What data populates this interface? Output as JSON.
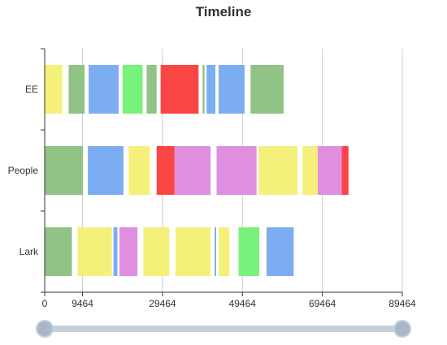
{
  "chart_data": {
    "type": "bar",
    "subtype": "horizontal-timeline",
    "title": "Timeline",
    "xlabel": "",
    "ylabel": "",
    "xlim": [
      0,
      89464
    ],
    "x_ticks": [
      0,
      9464,
      29464,
      49464,
      69464,
      89464
    ],
    "x_tick_labels": [
      "0",
      "9464",
      "29464",
      "49464",
      "69464",
      "89464"
    ],
    "categories": [
      "EE",
      "People",
      "Lark"
    ],
    "grid": "vertical",
    "legend": "none",
    "slider": {
      "start": 0,
      "end": 1
    },
    "rows": [
      {
        "category": "EE",
        "segments": [
          {
            "start": 0,
            "end": 4400,
            "color": "#f5f07a"
          },
          {
            "start": 6000,
            "end": 10000,
            "color": "#91c386"
          },
          {
            "start": 11000,
            "end": 18500,
            "color": "#7cadf2"
          },
          {
            "start": 19500,
            "end": 24500,
            "color": "#79f27b"
          },
          {
            "start": 25500,
            "end": 28000,
            "color": "#91c386"
          },
          {
            "start": 29000,
            "end": 38500,
            "color": "#fa4545"
          },
          {
            "start": 39500,
            "end": 40000,
            "color": "#91c386"
          },
          {
            "start": 40500,
            "end": 42700,
            "color": "#7cadf2"
          },
          {
            "start": 43500,
            "end": 50000,
            "color": "#7cadf2"
          },
          {
            "start": 51500,
            "end": 59800,
            "color": "#91c386"
          }
        ]
      },
      {
        "category": "People",
        "segments": [
          {
            "start": 0,
            "end": 9600,
            "color": "#91c386"
          },
          {
            "start": 10800,
            "end": 19700,
            "color": "#7cadf2"
          },
          {
            "start": 21000,
            "end": 26300,
            "color": "#f5f07a"
          },
          {
            "start": 28000,
            "end": 32500,
            "color": "#fa4545"
          },
          {
            "start": 32500,
            "end": 41500,
            "color": "#e08fe0"
          },
          {
            "start": 43000,
            "end": 53000,
            "color": "#e08fe0"
          },
          {
            "start": 53500,
            "end": 63300,
            "color": "#f5f07a"
          },
          {
            "start": 64500,
            "end": 68300,
            "color": "#f5f07a"
          },
          {
            "start": 68300,
            "end": 74300,
            "color": "#e08fe0"
          },
          {
            "start": 74300,
            "end": 76000,
            "color": "#fa4545"
          }
        ]
      },
      {
        "category": "Lark",
        "segments": [
          {
            "start": 0,
            "end": 6800,
            "color": "#91c386"
          },
          {
            "start": 8200,
            "end": 16800,
            "color": "#f5f07a"
          },
          {
            "start": 17200,
            "end": 18200,
            "color": "#7cadf2"
          },
          {
            "start": 18700,
            "end": 23200,
            "color": "#e08fe0"
          },
          {
            "start": 24700,
            "end": 31200,
            "color": "#f5f07a"
          },
          {
            "start": 32700,
            "end": 41500,
            "color": "#f5f07a"
          },
          {
            "start": 42500,
            "end": 42900,
            "color": "#7cadf2"
          },
          {
            "start": 43500,
            "end": 46200,
            "color": "#f5f07a"
          },
          {
            "start": 48500,
            "end": 53700,
            "color": "#79f27b"
          },
          {
            "start": 55500,
            "end": 62300,
            "color": "#7cadf2"
          }
        ]
      }
    ]
  }
}
